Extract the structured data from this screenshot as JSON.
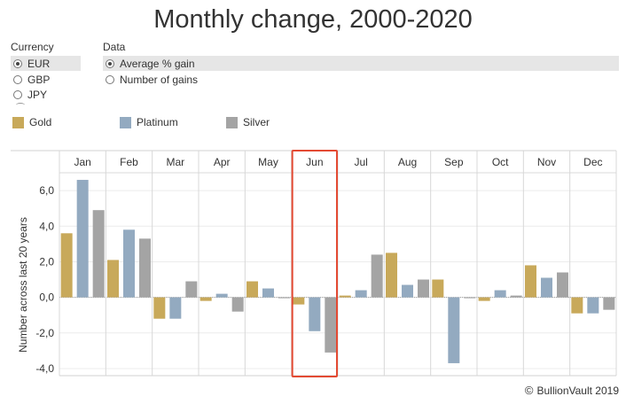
{
  "title": "Monthly change, 2000-2020",
  "currency": {
    "label": "Currency",
    "options": [
      "EUR",
      "GBP",
      "JPY"
    ],
    "selected": "EUR"
  },
  "data_selector": {
    "label": "Data",
    "options": [
      "Average % gain",
      "Number of gains"
    ],
    "selected": "Average % gain"
  },
  "legend": [
    {
      "name": "Gold",
      "color": "#c8a95a"
    },
    {
      "name": "Platinum",
      "color": "#93aac0"
    },
    {
      "name": "Silver",
      "color": "#a4a4a4"
    }
  ],
  "highlight_month": "Jun",
  "highlight_color": "#e34a33",
  "credit": "BullionVault 2019",
  "chart_data": {
    "type": "bar",
    "categories": [
      "Jan",
      "Feb",
      "Mar",
      "Apr",
      "May",
      "Jun",
      "Jul",
      "Aug",
      "Sep",
      "Oct",
      "Nov",
      "Dec"
    ],
    "series": [
      {
        "name": "Gold",
        "color": "#c8a95a",
        "values": [
          3.6,
          2.1,
          -1.2,
          -0.2,
          0.9,
          -0.4,
          0.1,
          2.5,
          1.0,
          -0.2,
          1.8,
          -0.9
        ]
      },
      {
        "name": "Platinum",
        "color": "#93aac0",
        "values": [
          6.6,
          3.8,
          -1.2,
          0.2,
          0.5,
          -1.9,
          0.4,
          0.7,
          -3.7,
          0.4,
          1.1,
          -0.9
        ]
      },
      {
        "name": "Silver",
        "color": "#a4a4a4",
        "values": [
          4.9,
          3.3,
          0.9,
          -0.8,
          0.0,
          -3.1,
          2.4,
          1.0,
          0.0,
          0.1,
          1.4,
          -0.7
        ]
      }
    ],
    "ylabel": "Number across last 20 years",
    "ylim": [
      -4.4,
      7.0
    ],
    "yticks": [
      6.0,
      4.0,
      2.0,
      0.0,
      -2.0,
      -4.0
    ],
    "ytick_labels": [
      "6,0",
      "4,0",
      "2,0",
      "0,0",
      "-2,0",
      "-4,0"
    ],
    "grid": true
  }
}
